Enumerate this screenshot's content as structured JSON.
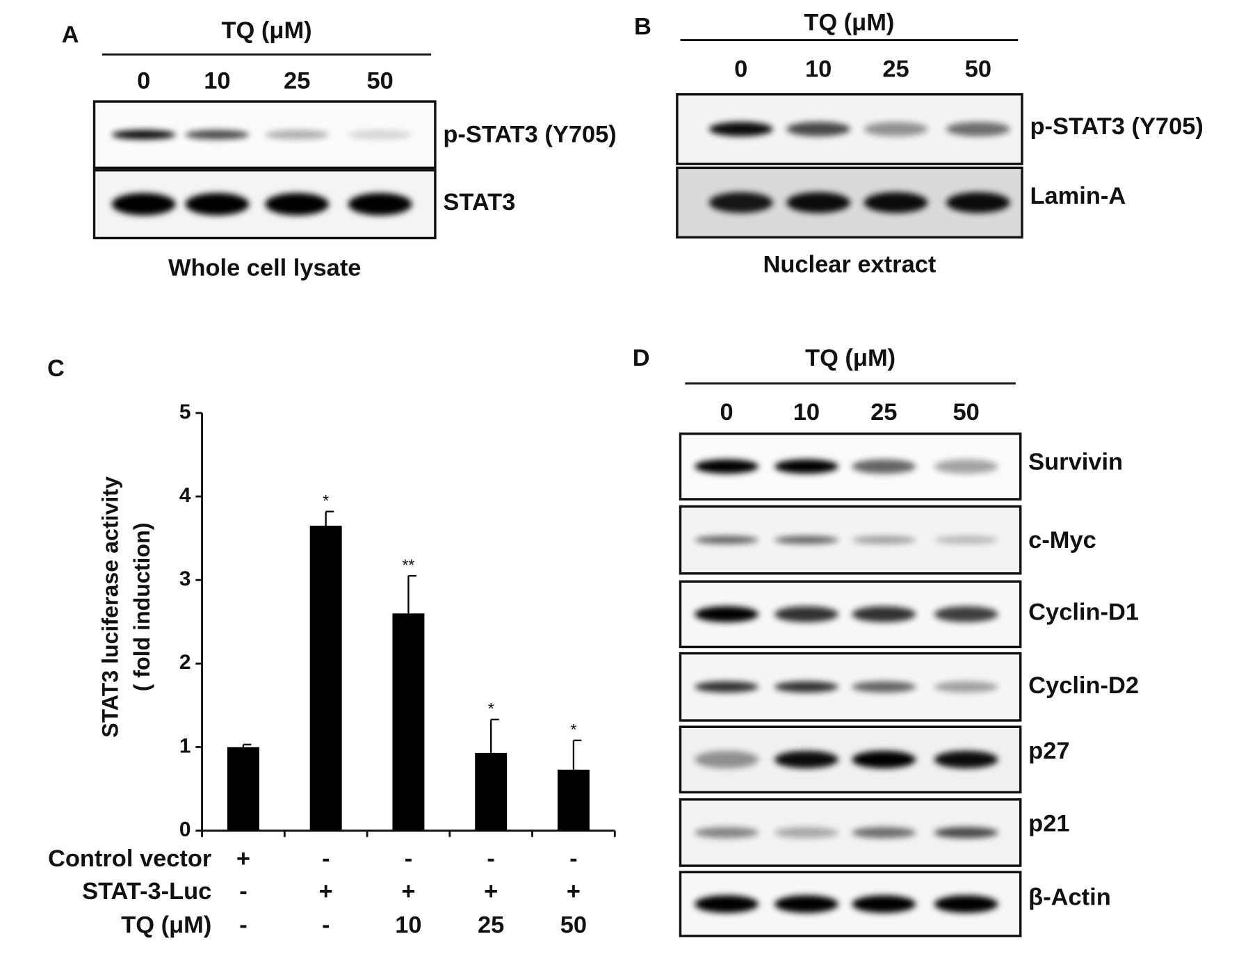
{
  "panel_a": {
    "letter": "A",
    "treatment": "TQ (μM)",
    "doses": [
      "0",
      "10",
      "25",
      "50"
    ],
    "blots": [
      "p-STAT3 (Y705)",
      "STAT3"
    ],
    "caption": "Whole cell lysate"
  },
  "panel_b": {
    "letter": "B",
    "treatment": "TQ (μM)",
    "doses": [
      "0",
      "10",
      "25",
      "50"
    ],
    "blots": [
      "p-STAT3 (Y705)",
      "Lamin-A"
    ],
    "caption": "Nuclear extract"
  },
  "chart_data": {
    "type": "bar",
    "letter": "C",
    "y_label": "STAT3 luciferase activity",
    "y_label_unit": "( fold induction)",
    "values": [
      1.0,
      3.65,
      2.6,
      0.93,
      0.73
    ],
    "errors": [
      0.03,
      0.17,
      0.45,
      0.4,
      0.35
    ],
    "significance": [
      null,
      "*",
      "**",
      "*",
      "*"
    ],
    "color": "#000000",
    "ylim": [
      0,
      5
    ],
    "yticks": [
      0,
      1,
      2,
      3,
      4,
      5
    ],
    "conditions": [
      {
        "label": "Control vector",
        "values": [
          "+",
          "-",
          "-",
          "-",
          "-"
        ]
      },
      {
        "label": "STAT-3-Luc",
        "values": [
          "-",
          "+",
          "+",
          "+",
          "+"
        ]
      },
      {
        "label": "TQ (μM)",
        "values": [
          "-",
          "-",
          "10",
          "25",
          "50"
        ]
      }
    ]
  },
  "panel_d": {
    "letter": "D",
    "treatment": "TQ (μM)",
    "doses": [
      "0",
      "10",
      "25",
      "50"
    ],
    "blots": [
      "Survivin",
      "c-Myc",
      "Cyclin-D1",
      "Cyclin-D2",
      "p27",
      "p21",
      "β-Actin"
    ]
  }
}
